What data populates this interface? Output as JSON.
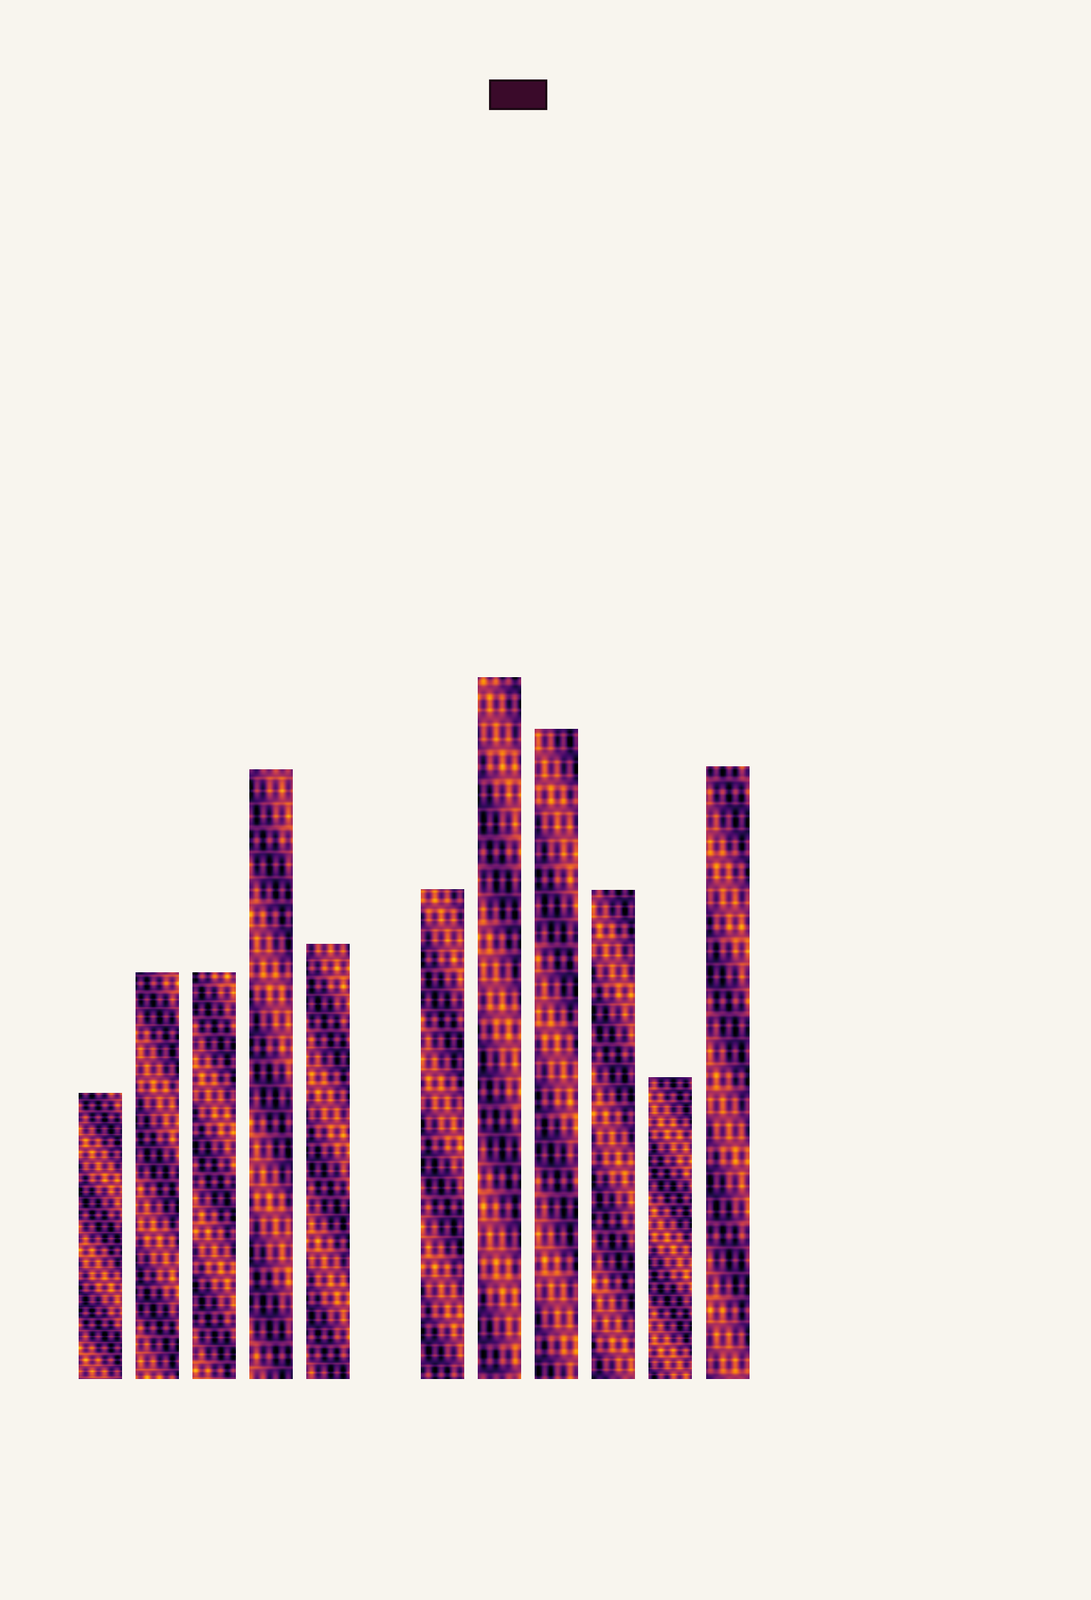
{
  "chart_data": {
    "type": "bar",
    "categories": [
      null,
      null,
      null,
      null,
      null,
      null,
      null,
      null,
      null,
      null,
      null,
      null
    ],
    "values": [
      281,
      399,
      399,
      598,
      427,
      null,
      481,
      689,
      638,
      480,
      296,
      601
    ],
    "ylim": [
      0,
      700
    ],
    "yticks": [],
    "tick_labels": false,
    "grid": false,
    "color": "#1a0612"
  }
}
